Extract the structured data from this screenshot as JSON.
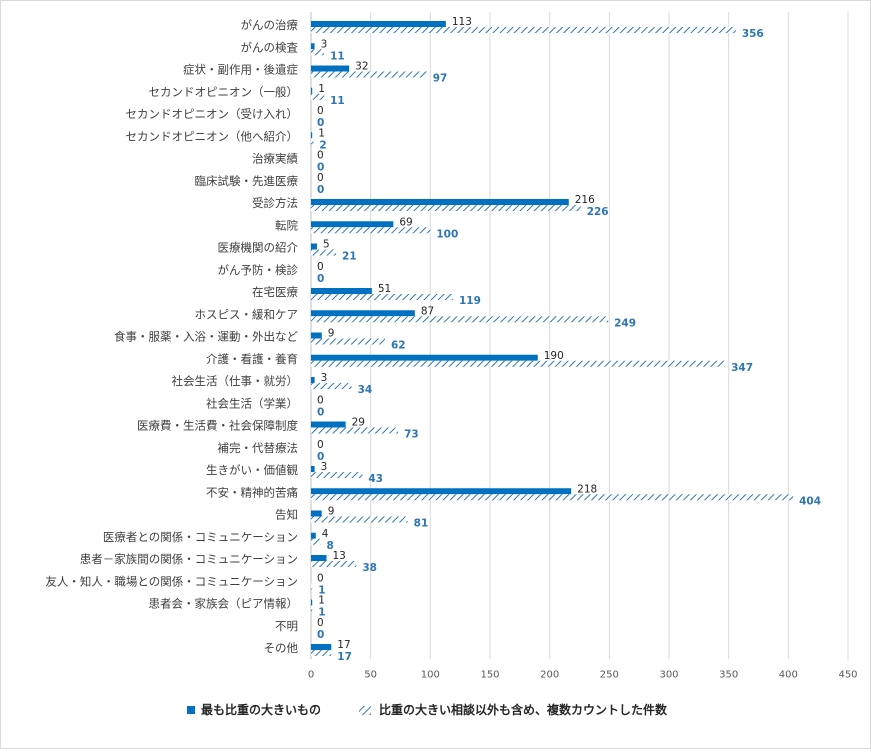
{
  "chart_data": {
    "type": "bar",
    "orientation": "horizontal",
    "categories": [
      "がんの治療",
      "がんの検査",
      "症状・副作用・後遺症",
      "セカンドオピニオン（一般）",
      "セカンドオピニオン（受け入れ）",
      "セカンドオピニオン（他へ紹介）",
      "治療実績",
      "臨床試験・先進医療",
      "受診方法",
      "転院",
      "医療機関の紹介",
      "がん予防・検診",
      "在宅医療",
      "ホスピス・緩和ケア",
      "食事・服薬・入浴・運動・外出など",
      "介護・看護・養育",
      "社会生活（仕事・就労）",
      "社会生活（学業）",
      "医療費・生活費・社会保障制度",
      "補完・代替療法",
      "生きがい・価値観",
      "不安・精神的苦痛",
      "告知",
      "医療者との関係・コミュニケーション",
      "患者－家族間の関係・コミュニケーション",
      "友人・知人・職場との関係・コミュニケーション",
      "患者会・家族会（ピア情報）",
      "不明",
      "その他"
    ],
    "series": [
      {
        "name": "最も比重の大きいもの",
        "color": "#0070c0",
        "pattern": "solid",
        "values": [
          113,
          3,
          32,
          1,
          0,
          1,
          0,
          0,
          216,
          69,
          5,
          0,
          51,
          87,
          9,
          190,
          3,
          0,
          29,
          0,
          3,
          218,
          9,
          4,
          13,
          0,
          1,
          0,
          17
        ]
      },
      {
        "name": "比重の大きい相談以外も含め、複数カウントした件数",
        "color": "#2e75b6",
        "pattern": "diagonal-hatch",
        "values": [
          356,
          11,
          97,
          11,
          0,
          2,
          0,
          0,
          226,
          100,
          21,
          0,
          119,
          249,
          62,
          347,
          34,
          0,
          73,
          0,
          43,
          404,
          81,
          8,
          38,
          1,
          1,
          0,
          17
        ]
      }
    ],
    "xlim": [
      0,
      450
    ],
    "xticks": [
      "0",
      "50",
      "100",
      "150",
      "200",
      "250",
      "300",
      "350",
      "400",
      "450"
    ],
    "grid": true,
    "legend_position": "bottom",
    "data_labels": true
  }
}
